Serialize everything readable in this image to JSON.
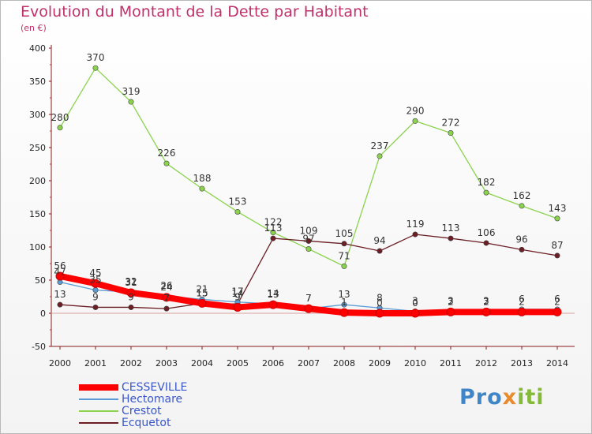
{
  "title": "Evolution du Montant de la Dette par Habitant",
  "subtitle": "(en €)",
  "logo": {
    "p": "Pro",
    "x": "x",
    "iti": "iti"
  },
  "chart_data": {
    "type": "line",
    "x": [
      "2000",
      "2001",
      "2002",
      "2003",
      "2004",
      "2005",
      "2006",
      "2007",
      "2008",
      "2009",
      "2010",
      "2011",
      "2012",
      "2013",
      "2014"
    ],
    "ylim": [
      -50,
      400
    ],
    "yticks": [
      "-50",
      "0",
      "50",
      "100",
      "150",
      "200",
      "250",
      "300",
      "350",
      "400"
    ],
    "grid": false,
    "legend": "bottom-left",
    "series": [
      {
        "name": "CESSEVILLE",
        "color": "#ff0000",
        "values": [
          56,
          45,
          31,
          24,
          15,
          9,
          13,
          7,
          1,
          0,
          0,
          2,
          2,
          2,
          2
        ],
        "labels": [
          "56",
          "45",
          "31",
          "24",
          "15",
          "9",
          "13",
          "7",
          "1",
          "0",
          "0",
          "2",
          "2",
          "2",
          "2"
        ]
      },
      {
        "name": "Hectomare",
        "color": "#5b9bd5",
        "values": [
          47,
          35,
          32,
          26,
          21,
          17,
          14,
          7,
          13,
          8,
          3,
          3,
          3,
          6,
          6
        ],
        "labels": [
          "47",
          "35",
          "32",
          "26",
          "21",
          "17",
          "14",
          "7",
          "13",
          "8",
          "3",
          "3",
          "3",
          "6",
          "6"
        ]
      },
      {
        "name": "Crestot",
        "color": "#8bd34d",
        "values": [
          280,
          370,
          319,
          226,
          188,
          153,
          122,
          97,
          71,
          237,
          290,
          272,
          182,
          162,
          143
        ],
        "labels": [
          "280",
          "370",
          "319",
          "226",
          "188",
          "153",
          "122",
          "97",
          "71",
          "237",
          "290",
          "272",
          "182",
          "162",
          "143"
        ]
      },
      {
        "name": "Ecquetot",
        "color": "#6b1e24",
        "values": [
          13,
          9,
          9,
          7,
          15,
          14,
          113,
          109,
          105,
          94,
          119,
          113,
          106,
          96,
          87
        ],
        "labels": [
          "13",
          "9",
          "9",
          "7",
          "15",
          "14",
          "113",
          "109",
          "105",
          "94",
          "119",
          "113",
          "106",
          "96",
          "87"
        ]
      }
    ]
  }
}
